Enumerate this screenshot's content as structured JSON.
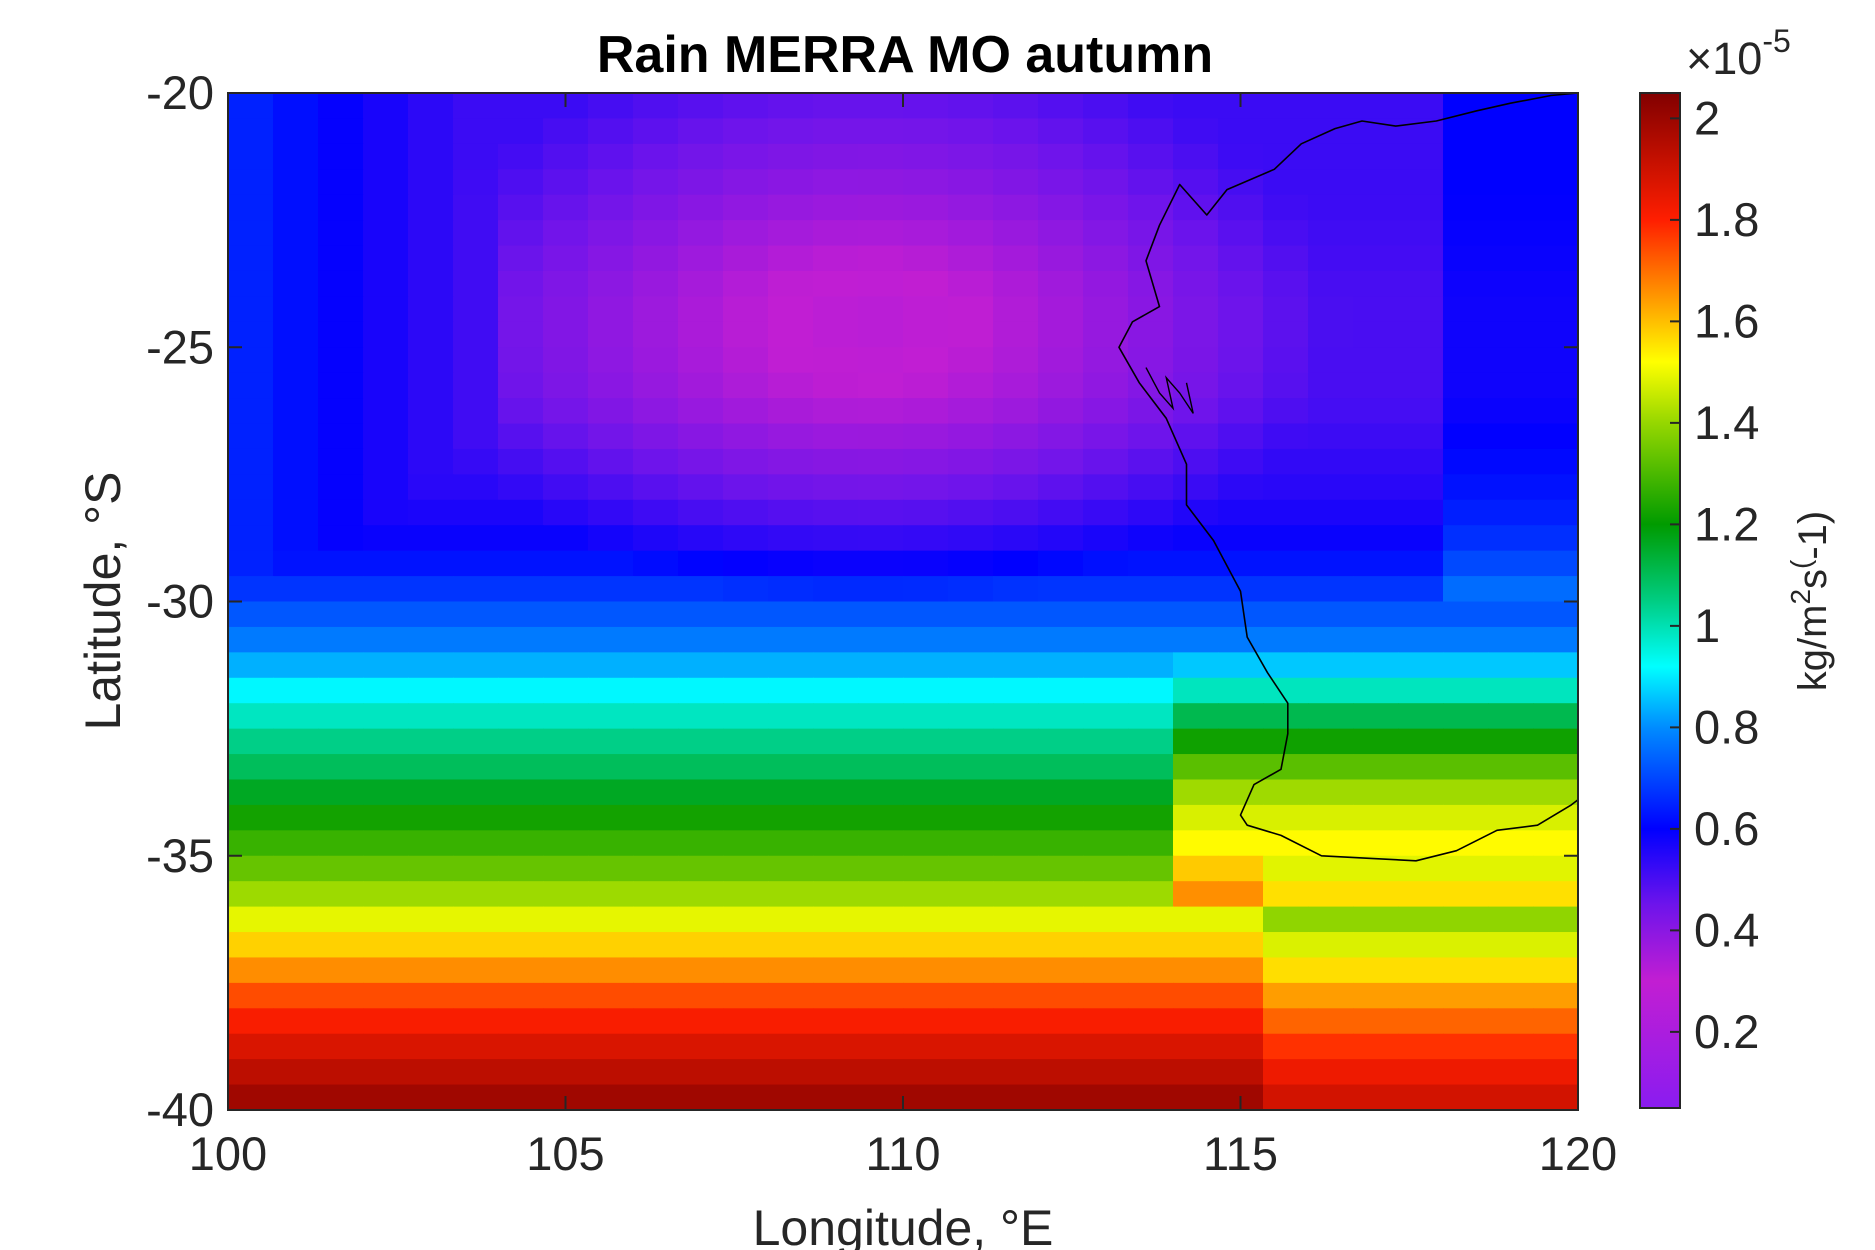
{
  "chart_data": {
    "type": "heatmap",
    "title": "Rain MERRA MO autumn",
    "xlabel": "Longitude, °E",
    "ylabel": "Latitude, °S",
    "xlim": [
      100,
      120
    ],
    "ylim": [
      -40,
      -20
    ],
    "x_ticks": [
      100,
      105,
      110,
      115,
      120
    ],
    "x_tick_labels": [
      "100",
      "105",
      "110",
      "115",
      "120"
    ],
    "y_ticks": [
      -20,
      -25,
      -30,
      -35,
      -40
    ],
    "y_tick_labels": [
      "-20",
      "-25",
      "-30",
      "-35",
      "-40"
    ],
    "colormap": "jet-like (violet to dark red)",
    "colors": {
      "violet": "#8a1cf0",
      "magenta": "#c21ed2",
      "blue": "#0000ff",
      "cyan": "#00ffff",
      "green": "#00a000",
      "yellow": "#ffff00",
      "orange": "#ff8c00",
      "red": "#ff0000",
      "dark_red": "#800000"
    },
    "grid_resolution_deg": {
      "lon": 0.667,
      "lat": 0.5
    },
    "grid_rows_lat_centers": [
      -20.25,
      -20.75,
      -21.25,
      -21.75,
      -22.25,
      -22.75,
      -23.25,
      -23.75,
      -24.25,
      -24.75,
      -25.25,
      -25.75,
      -26.25,
      -26.75,
      -27.25,
      -27.75,
      -28.25,
      -28.75,
      -29.25,
      -29.75,
      -30.25,
      -30.75,
      -31.25,
      -31.75,
      -32.25,
      -32.75,
      -33.25,
      -33.75,
      -34.25,
      -34.75,
      -35.25,
      -35.75,
      -36.25,
      -36.75,
      -37.25,
      -37.75,
      -38.25,
      -38.75,
      -39.25,
      -39.75
    ],
    "colorbar": {
      "min": 0.05,
      "max": 2.05,
      "ticks": [
        0.2,
        0.4,
        0.6,
        0.8,
        1,
        1.2,
        1.4,
        1.6,
        1.8,
        2
      ],
      "tick_labels": [
        "0.2",
        "0.4",
        "0.6",
        "0.8",
        "1",
        "1.2",
        "1.4",
        "1.6",
        "1.8",
        "2"
      ],
      "multiplier_prefix": "×10",
      "multiplier_exponent": "-5",
      "label_parts": [
        "kg/m",
        "2",
        "s",
        "(",
        "-1)"
      ]
    },
    "coastline": "Western Australia coastline (Shark Bay, Perth, Cape Leeuwin, south coast)"
  }
}
